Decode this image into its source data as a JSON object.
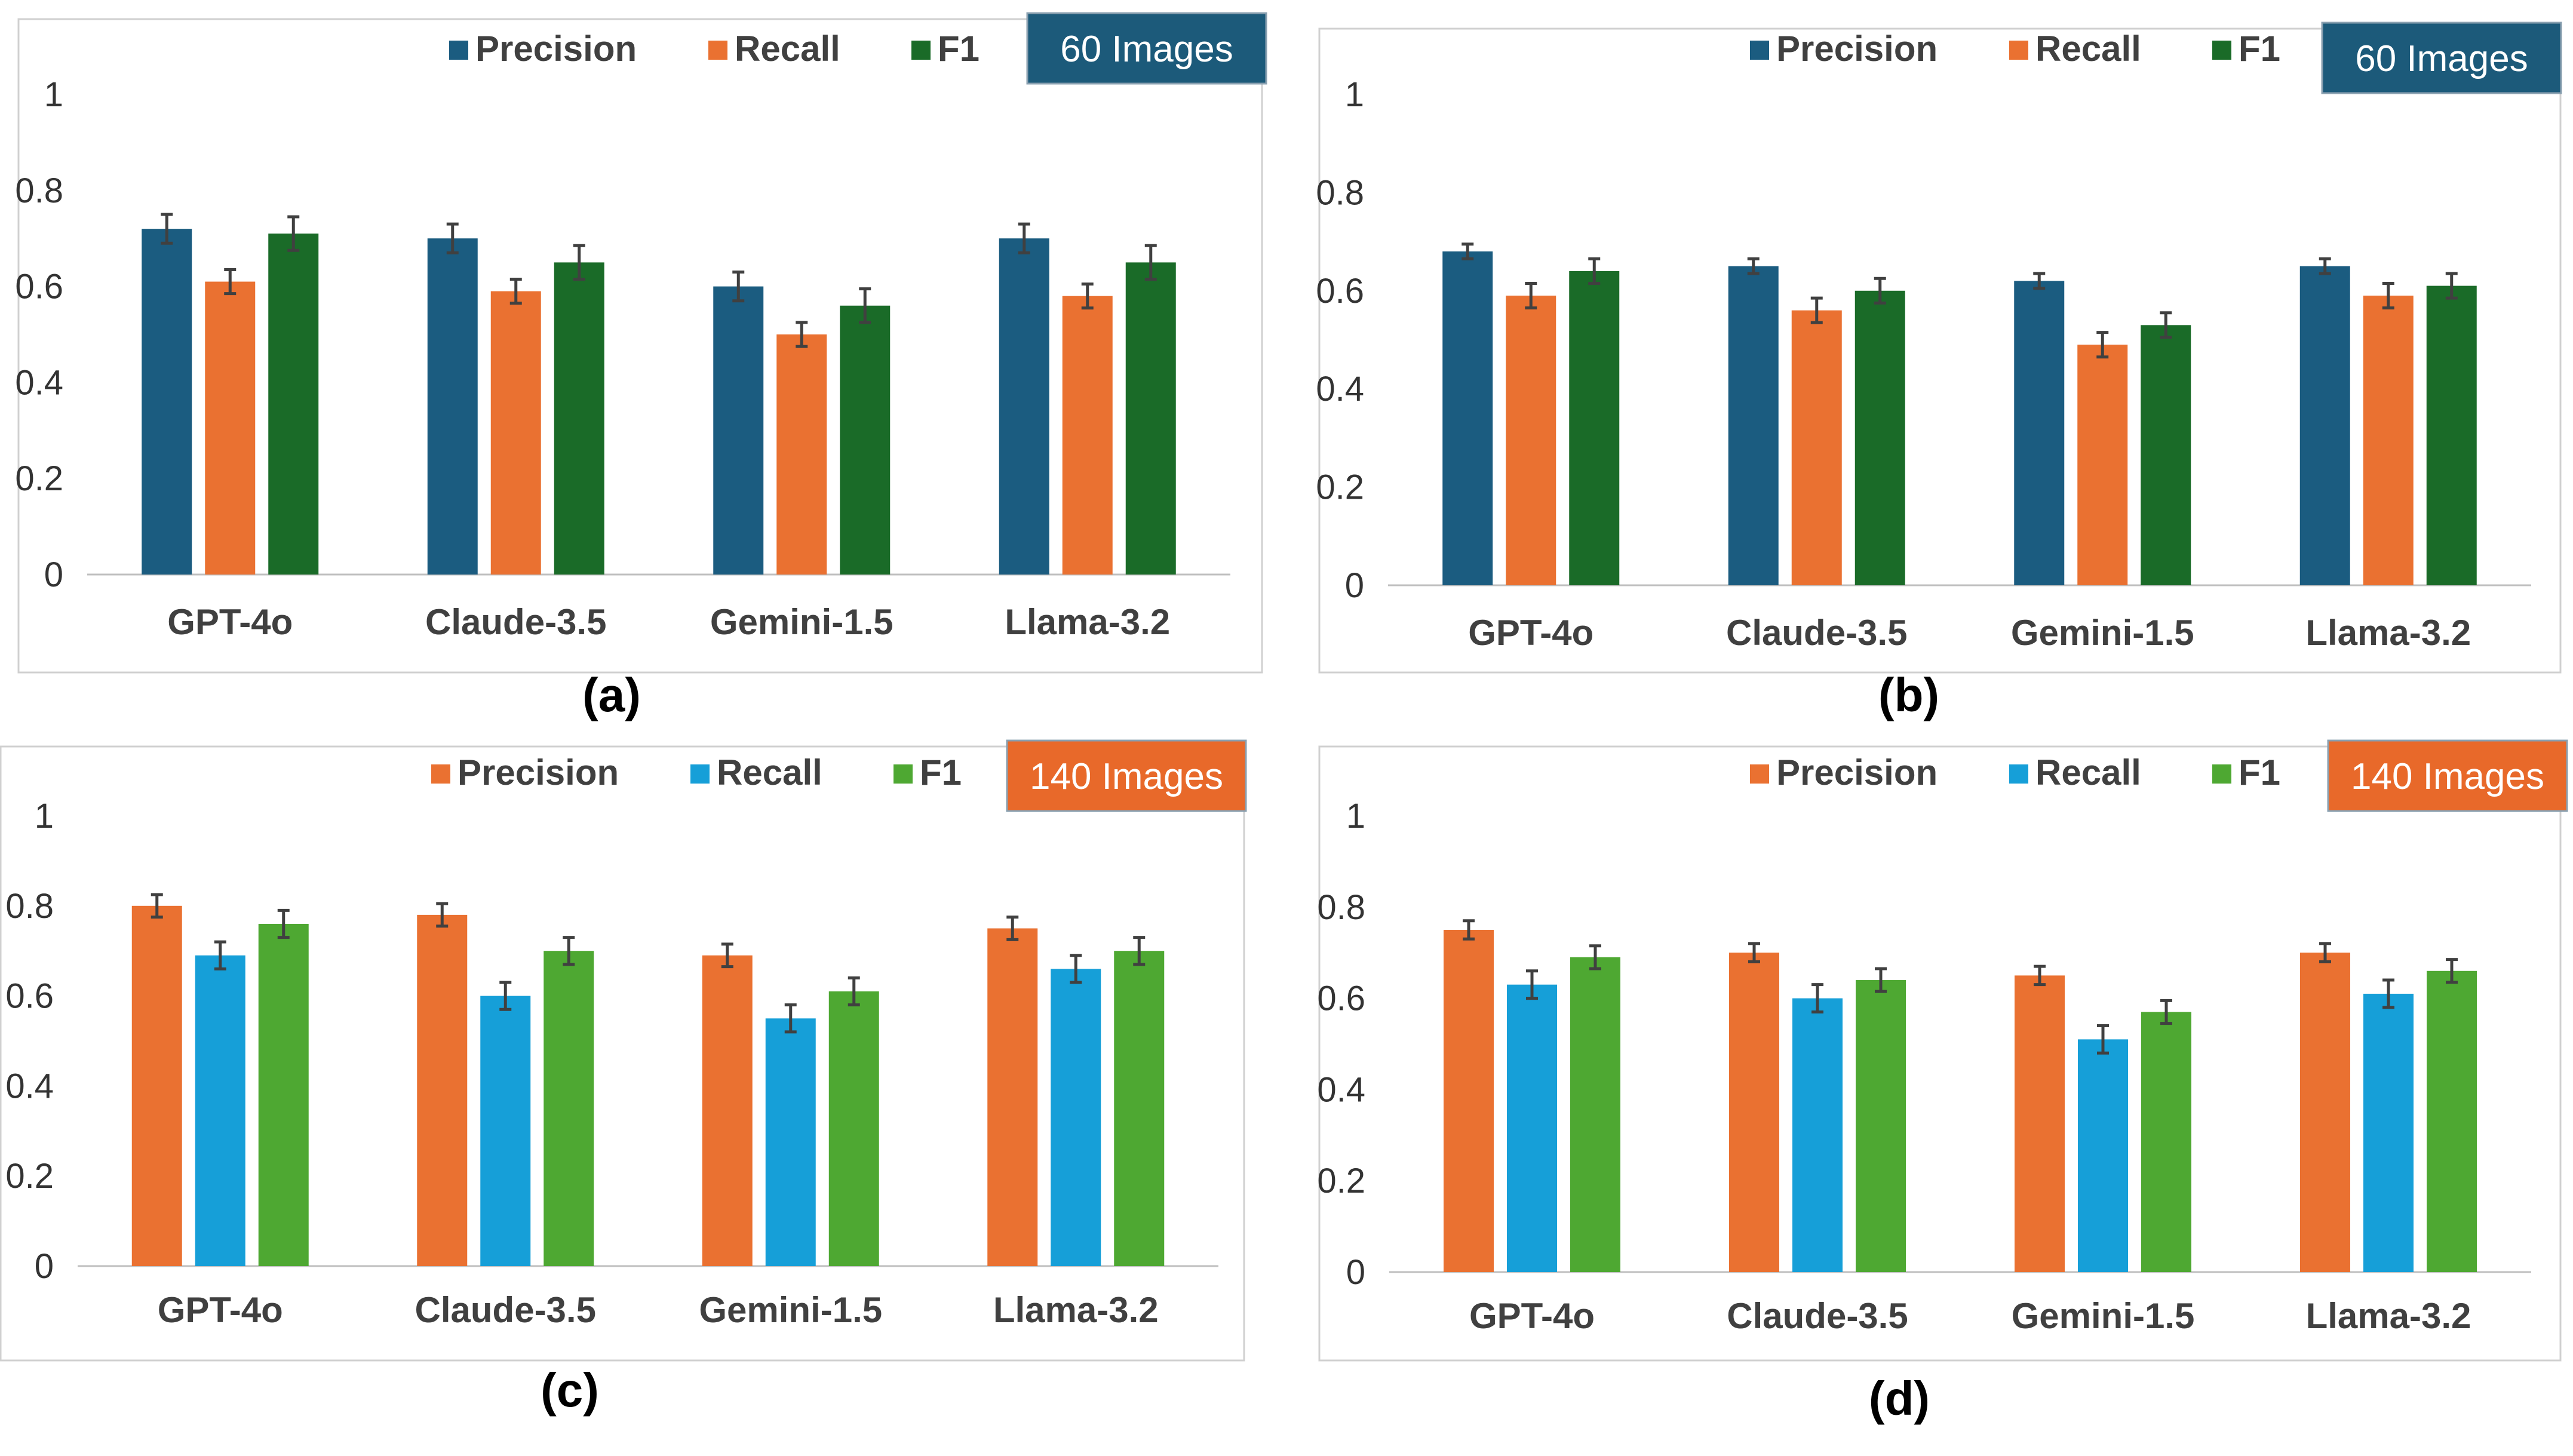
{
  "chart_data": [
    {
      "type": "bar",
      "caption": "(a)",
      "badge": {
        "text": "60 Images",
        "color": "#1c5a7a"
      },
      "categories": [
        "GPT-4o",
        "Claude-3.5",
        "Gemini-1.5",
        "Llama-3.2"
      ],
      "ylim": [
        0,
        1
      ],
      "yticks": [
        "0",
        "0.2",
        "0.4",
        "0.6",
        "0.8",
        "1"
      ],
      "series": [
        {
          "name": "Precision",
          "color": "#1b5c80",
          "values": [
            0.72,
            0.7,
            0.6,
            0.7
          ],
          "errors": [
            0.03,
            0.03,
            0.03,
            0.03
          ]
        },
        {
          "name": "Recall",
          "color": "#ea7131",
          "values": [
            0.61,
            0.59,
            0.5,
            0.58
          ],
          "errors": [
            0.025,
            0.025,
            0.025,
            0.025
          ]
        },
        {
          "name": "F1",
          "color": "#1a6b28",
          "values": [
            0.71,
            0.65,
            0.56,
            0.65
          ],
          "errors": [
            0.035,
            0.035,
            0.035,
            0.035
          ]
        }
      ]
    },
    {
      "type": "bar",
      "caption": "(b)",
      "badge": {
        "text": "60 Images",
        "color": "#1c5a7a"
      },
      "categories": [
        "GPT-4o",
        "Claude-3.5",
        "Gemini-1.5",
        "Llama-3.2"
      ],
      "ylim": [
        0,
        1
      ],
      "yticks": [
        "0",
        "0.2",
        "0.4",
        "0.6",
        "0.8",
        "1"
      ],
      "series": [
        {
          "name": "Precision",
          "color": "#1b5c80",
          "values": [
            0.68,
            0.65,
            0.62,
            0.65
          ],
          "errors": [
            0.015,
            0.015,
            0.015,
            0.015
          ]
        },
        {
          "name": "Recall",
          "color": "#ea7131",
          "values": [
            0.59,
            0.56,
            0.49,
            0.59
          ],
          "errors": [
            0.025,
            0.025,
            0.025,
            0.025
          ]
        },
        {
          "name": "F1",
          "color": "#1a6b28",
          "values": [
            0.64,
            0.6,
            0.53,
            0.61
          ],
          "errors": [
            0.025,
            0.025,
            0.025,
            0.025
          ]
        }
      ]
    },
    {
      "type": "bar",
      "caption": "(c)",
      "badge": {
        "text": "140 Images",
        "color": "#e8692a"
      },
      "categories": [
        "GPT-4o",
        "Claude-3.5",
        "Gemini-1.5",
        "Llama-3.2"
      ],
      "ylim": [
        0,
        1
      ],
      "yticks": [
        "0",
        "0.2",
        "0.4",
        "0.6",
        "0.8",
        "1"
      ],
      "series": [
        {
          "name": "Precision",
          "color": "#ea7131",
          "values": [
            0.8,
            0.78,
            0.69,
            0.75
          ],
          "errors": [
            0.025,
            0.025,
            0.025,
            0.025
          ]
        },
        {
          "name": "Recall",
          "color": "#169fd8",
          "values": [
            0.69,
            0.6,
            0.55,
            0.66
          ],
          "errors": [
            0.03,
            0.03,
            0.03,
            0.03
          ]
        },
        {
          "name": "F1",
          "color": "#4ea832",
          "values": [
            0.76,
            0.7,
            0.61,
            0.7
          ],
          "errors": [
            0.03,
            0.03,
            0.03,
            0.03
          ]
        }
      ]
    },
    {
      "type": "bar",
      "caption": "(d)",
      "badge": {
        "text": "140 Images",
        "color": "#e8692a"
      },
      "categories": [
        "GPT-4o",
        "Claude-3.5",
        "Gemini-1.5",
        "Llama-3.2"
      ],
      "ylim": [
        0,
        1
      ],
      "yticks": [
        "0",
        "0.2",
        "0.4",
        "0.6",
        "0.8",
        "1"
      ],
      "series": [
        {
          "name": "Precision",
          "color": "#ea7131",
          "values": [
            0.75,
            0.7,
            0.65,
            0.7
          ],
          "errors": [
            0.02,
            0.02,
            0.02,
            0.02
          ]
        },
        {
          "name": "Recall",
          "color": "#169fd8",
          "values": [
            0.63,
            0.6,
            0.51,
            0.61
          ],
          "errors": [
            0.03,
            0.03,
            0.03,
            0.03
          ]
        },
        {
          "name": "F1",
          "color": "#4ea832",
          "values": [
            0.69,
            0.64,
            0.57,
            0.66
          ],
          "errors": [
            0.025,
            0.025,
            0.025,
            0.025
          ]
        }
      ]
    }
  ]
}
